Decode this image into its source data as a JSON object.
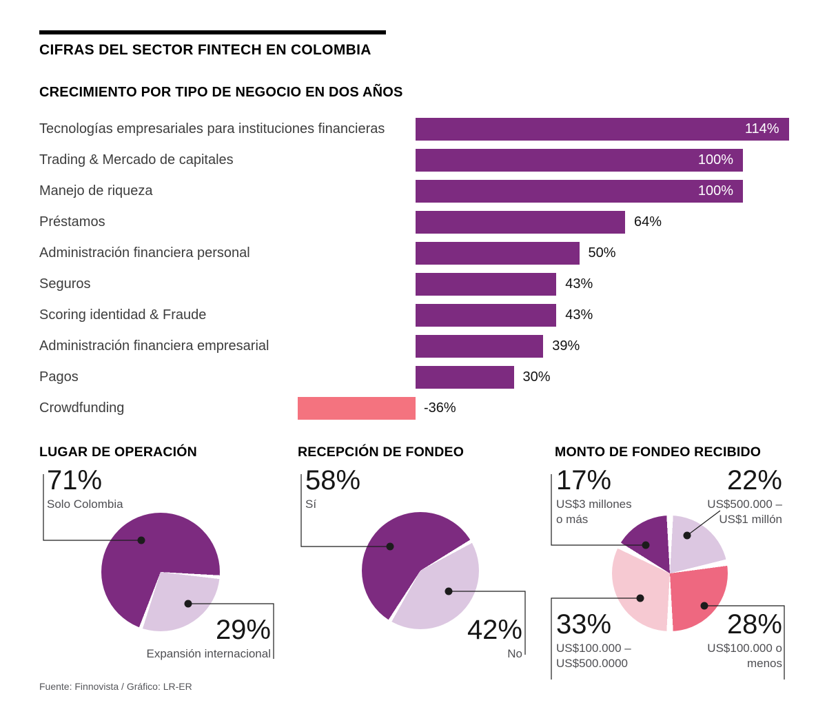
{
  "header": {
    "title": "CIFRAS DEL SECTOR FINTECH EN COLOMBIA"
  },
  "footer": {
    "source": "Fuente: Finnovista / Gráfico: LR-ER"
  },
  "colors": {
    "purple": "#7d2b80",
    "salmon": "#f4737f",
    "pink": "#ee6880",
    "lavender": "#dcc7e1",
    "light_pink": "#f6c9d2"
  },
  "chart_data": [
    {
      "type": "bar",
      "orientation": "horizontal",
      "title": "CRECIMIENTO POR TIPO DE NEGOCIO EN DOS AÑOS",
      "unit": "%",
      "xlim": [
        -40,
        120
      ],
      "categories": [
        "Tecnologías empresariales para instituciones financieras",
        "Trading & Mercado de capitales",
        "Manejo de riqueza",
        "Préstamos",
        "Administración financiera personal",
        "Seguros",
        "Scoring identidad & Fraude",
        "Administración financiera empresarial",
        "Pagos",
        "Crowdfunding"
      ],
      "values": [
        114,
        100,
        100,
        64,
        50,
        43,
        43,
        39,
        30,
        -36
      ],
      "labels": [
        "114%",
        "100%",
        "100%",
        "64%",
        "50%",
        "43%",
        "43%",
        "39%",
        "30%",
        "-36%"
      ],
      "positive_color": "#7d2b80",
      "negative_color": "#f4737f"
    },
    {
      "type": "pie",
      "title": "LUGAR DE OPERACIÓN",
      "start_angle_deg": 95,
      "gap_half_pct": 0.5,
      "slices": [
        {
          "label": "Expansión internacional",
          "value": 29,
          "pct": "29%",
          "color": "#dcc7e1"
        },
        {
          "label": "Solo Colombia",
          "value": 71,
          "pct": "71%",
          "color": "#7d2b80"
        }
      ]
    },
    {
      "type": "pie",
      "title": "RECEPCIÓN DE FONDEO",
      "start_angle_deg": 60,
      "gap_half_pct": 0.5,
      "slices": [
        {
          "label": "No",
          "value": 42,
          "pct": "42%",
          "color": "#dcc7e1"
        },
        {
          "label": "Sí",
          "value": 58,
          "pct": "58%",
          "color": "#7d2b80"
        }
      ]
    },
    {
      "type": "pie",
      "title": "MONTO DE FONDEO RECIBIDO",
      "start_angle_deg": 0,
      "gap_half_pct": 0.9,
      "slices": [
        {
          "label": "US$500.000 – US$1 millón",
          "value": 22,
          "pct": "22%",
          "color": "#dcc7e1"
        },
        {
          "label": "US$100.000 o menos",
          "value": 28,
          "pct": "28%",
          "color": "#ee6880"
        },
        {
          "label": "US$100.000 – US$500.0000",
          "value": 33,
          "pct": "33%",
          "color": "#f6c9d2"
        },
        {
          "label": "US$3 millones o más",
          "value": 17,
          "pct": "17%",
          "color": "#7d2b80"
        }
      ]
    }
  ]
}
